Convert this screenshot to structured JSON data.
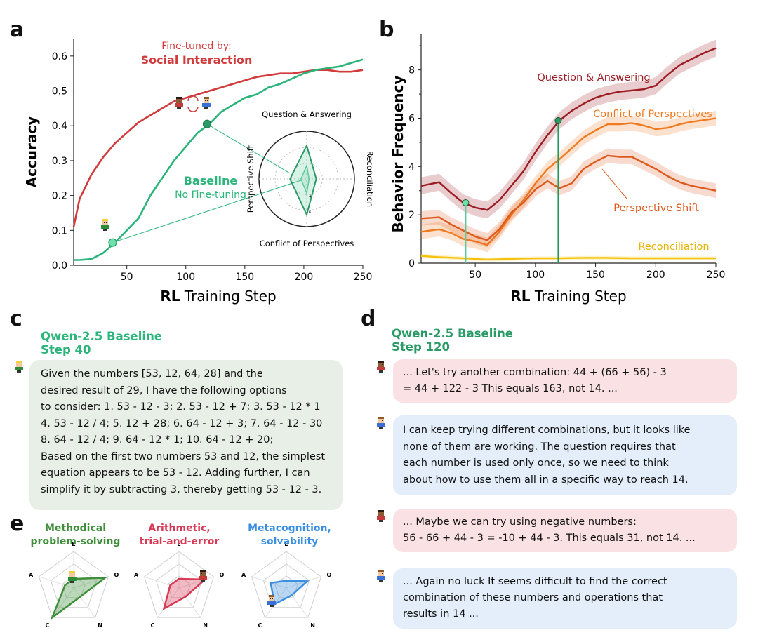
{
  "panel_letters": {
    "a": "a",
    "b": "b",
    "c": "c",
    "d": "d",
    "e": "e"
  },
  "colors": {
    "social": "#d23b3b",
    "baseline": "#2bb57b",
    "qa": "#9b1c22",
    "conflict": "#f07a20",
    "shift": "#dd5a1e",
    "recon": "#f4c20d",
    "green_dark": "#3f8f3a",
    "red_e": "#d63a55",
    "blue_e": "#3a8fe0"
  },
  "chart_data": [
    {
      "type": "line",
      "panel": "a",
      "xlabel_bold": "RL",
      "xlabel_rest": " Training Step",
      "ylabel": "Accuracy",
      "xlim": [
        5,
        250
      ],
      "ylim": [
        0,
        0.65
      ],
      "xticks": [
        50,
        100,
        150,
        200,
        250
      ],
      "yticks": [
        0.0,
        0.1,
        0.2,
        0.3,
        0.4,
        0.5,
        0.6
      ],
      "series": [
        {
          "name": "Fine-tuned by: Social Interaction",
          "x": [
            5,
            10,
            20,
            30,
            40,
            50,
            60,
            70,
            80,
            90,
            100,
            110,
            120,
            130,
            140,
            150,
            160,
            170,
            180,
            190,
            200,
            210,
            220,
            230,
            240,
            250
          ],
          "y": [
            0.11,
            0.19,
            0.26,
            0.31,
            0.35,
            0.38,
            0.41,
            0.43,
            0.45,
            0.47,
            0.48,
            0.49,
            0.5,
            0.51,
            0.52,
            0.53,
            0.54,
            0.545,
            0.55,
            0.55,
            0.555,
            0.56,
            0.56,
            0.555,
            0.555,
            0.56
          ]
        },
        {
          "name": "Baseline No Fine-tuning",
          "x": [
            5,
            10,
            20,
            30,
            40,
            50,
            60,
            70,
            80,
            90,
            100,
            110,
            120,
            130,
            140,
            150,
            160,
            170,
            180,
            190,
            200,
            210,
            220,
            230,
            240,
            250
          ],
          "y": [
            0.015,
            0.015,
            0.018,
            0.035,
            0.065,
            0.1,
            0.135,
            0.2,
            0.25,
            0.3,
            0.34,
            0.38,
            0.405,
            0.44,
            0.46,
            0.48,
            0.49,
            0.51,
            0.52,
            0.535,
            0.55,
            0.56,
            0.565,
            0.57,
            0.58,
            0.59
          ]
        }
      ],
      "labels": {
        "social_line1": "Fine-tuned by:",
        "social_line2": "Social Interaction",
        "base_line1": "Baseline",
        "base_line2": "No Fine-tuning"
      },
      "highlight_points": [
        {
          "x": 38,
          "y": 0.065
        },
        {
          "x": 118,
          "y": 0.405
        }
      ],
      "radar": {
        "axes": [
          "Question & Answering",
          "Reconciliation",
          "Conflict of Perspectives",
          "Perspective Shift"
        ],
        "step120": [
          0.7,
          0.2,
          0.75,
          0.35
        ],
        "step40": [
          0.28,
          0.05,
          0.3,
          0.12
        ],
        "ring_labels": [
          "4",
          "6"
        ]
      }
    },
    {
      "type": "line",
      "panel": "b",
      "xlabel_bold": "RL",
      "xlabel_rest": " Training Step",
      "ylabel": "Behavior Frequency",
      "xlim": [
        5,
        250
      ],
      "ylim": [
        0,
        9.5
      ],
      "xticks": [
        50,
        100,
        150,
        200,
        250
      ],
      "yticks": [
        0,
        2,
        4,
        6,
        8
      ],
      "series": [
        {
          "name": "Question & Answering",
          "x": [
            5,
            20,
            30,
            40,
            50,
            60,
            70,
            80,
            90,
            100,
            110,
            120,
            130,
            140,
            150,
            160,
            170,
            180,
            190,
            200,
            210,
            220,
            230,
            240,
            250
          ],
          "y": [
            3.2,
            3.35,
            2.9,
            2.5,
            2.3,
            2.2,
            2.6,
            3.2,
            3.8,
            4.6,
            5.3,
            5.9,
            6.3,
            6.6,
            6.85,
            7.0,
            7.1,
            7.15,
            7.2,
            7.35,
            7.8,
            8.2,
            8.45,
            8.7,
            8.9
          ]
        },
        {
          "name": "Conflict of Perspectives",
          "x": [
            5,
            20,
            30,
            40,
            50,
            60,
            70,
            80,
            90,
            100,
            110,
            120,
            130,
            140,
            150,
            160,
            170,
            180,
            190,
            200,
            210,
            220,
            230,
            240,
            250
          ],
          "y": [
            1.3,
            1.4,
            1.25,
            1.0,
            0.9,
            0.75,
            1.3,
            2.0,
            2.6,
            3.3,
            3.9,
            4.3,
            4.75,
            5.2,
            5.5,
            5.75,
            5.75,
            5.8,
            5.7,
            5.55,
            5.6,
            5.75,
            5.85,
            5.92,
            6.0
          ]
        },
        {
          "name": "Perspective Shift",
          "x": [
            5,
            20,
            30,
            40,
            50,
            60,
            70,
            80,
            90,
            100,
            110,
            120,
            130,
            140,
            150,
            160,
            170,
            180,
            190,
            200,
            210,
            220,
            230,
            240,
            250
          ],
          "y": [
            1.85,
            1.9,
            1.6,
            1.35,
            1.1,
            0.95,
            1.4,
            2.1,
            2.5,
            3.05,
            3.4,
            3.1,
            3.3,
            3.9,
            4.2,
            4.45,
            4.4,
            4.4,
            4.15,
            3.9,
            3.6,
            3.35,
            3.2,
            3.1,
            3.0
          ]
        },
        {
          "name": "Reconciliation",
          "x": [
            5,
            20,
            40,
            60,
            80,
            100,
            120,
            140,
            160,
            180,
            200,
            220,
            250
          ],
          "y": [
            0.3,
            0.25,
            0.2,
            0.15,
            0.18,
            0.2,
            0.2,
            0.22,
            0.22,
            0.2,
            0.2,
            0.2,
            0.2
          ]
        }
      ],
      "highlight_points": [
        {
          "x": 42,
          "y": 2.5
        },
        {
          "x": 119,
          "y": 5.9
        }
      ]
    },
    {
      "type": "radar",
      "panel": "e",
      "axes": [
        "E",
        "O",
        "N",
        "C",
        "A"
      ],
      "plots": [
        {
          "title1": "Methodical",
          "title2": "problem-solving",
          "values": [
            0.25,
            0.9,
            0.3,
            1.0,
            0.25
          ]
        },
        {
          "title1": "Arithmetic,",
          "title2": "trial-and-error",
          "values": [
            0.25,
            0.75,
            0.3,
            0.7,
            0.25
          ]
        },
        {
          "title1": "Metacognition,",
          "title2": "solvability",
          "values": [
            0.2,
            0.6,
            0.25,
            0.55,
            0.45
          ]
        }
      ]
    }
  ],
  "panel_c": {
    "title1": "Qwen-2.5 Baseline",
    "title2": "Step 40",
    "lines": [
      "Given the numbers [53, 12, 64, 28] and the",
      "desired result of 29, I have the following options",
      "to consider: 1. 53 - 12 - 3; 2. 53 - 12 + 7; 3. 53 - 12 * 1",
      "4. 53 - 12 / 4; 5. 12 + 28; 6. 64 - 12 + 3; 7. 64 - 12 - 30",
      "8. 64 - 12 / 4; 9. 64 - 12 * 1; 10. 64 - 12 + 20;",
      "Based on the first two numbers 53 and 12, the simplest",
      "equation appears to be 53 - 12.  Adding further, I can",
      "simplify it by subtracting 3, thereby getting 53 - 12 - 3."
    ]
  },
  "panel_d": {
    "title1": "Qwen-2.5 Baseline",
    "title2": "Step 120",
    "messages": [
      {
        "lines": [
          "... Let's try another combination: 44 + (66 + 56) - 3",
          "= 44 + 122 - 3  This equals 163, not 14. ..."
        ]
      },
      {
        "lines": [
          "I can keep trying different combinations, but it looks like",
          "none of them are working. The question requires that",
          "each number is used only once, so we need to think",
          "about how to use them all in a specific way to reach 14."
        ]
      },
      {
        "lines": [
          "... Maybe we can try using negative numbers:",
          "56 - 66 + 44 - 3 = -10 + 44 - 3. This equals 31, not 14. ..."
        ]
      },
      {
        "lines": [
          "... Again no luck  It seems difficult to find the correct",
          "combination of these numbers and operations that",
          "results in 14 ..."
        ]
      }
    ]
  }
}
